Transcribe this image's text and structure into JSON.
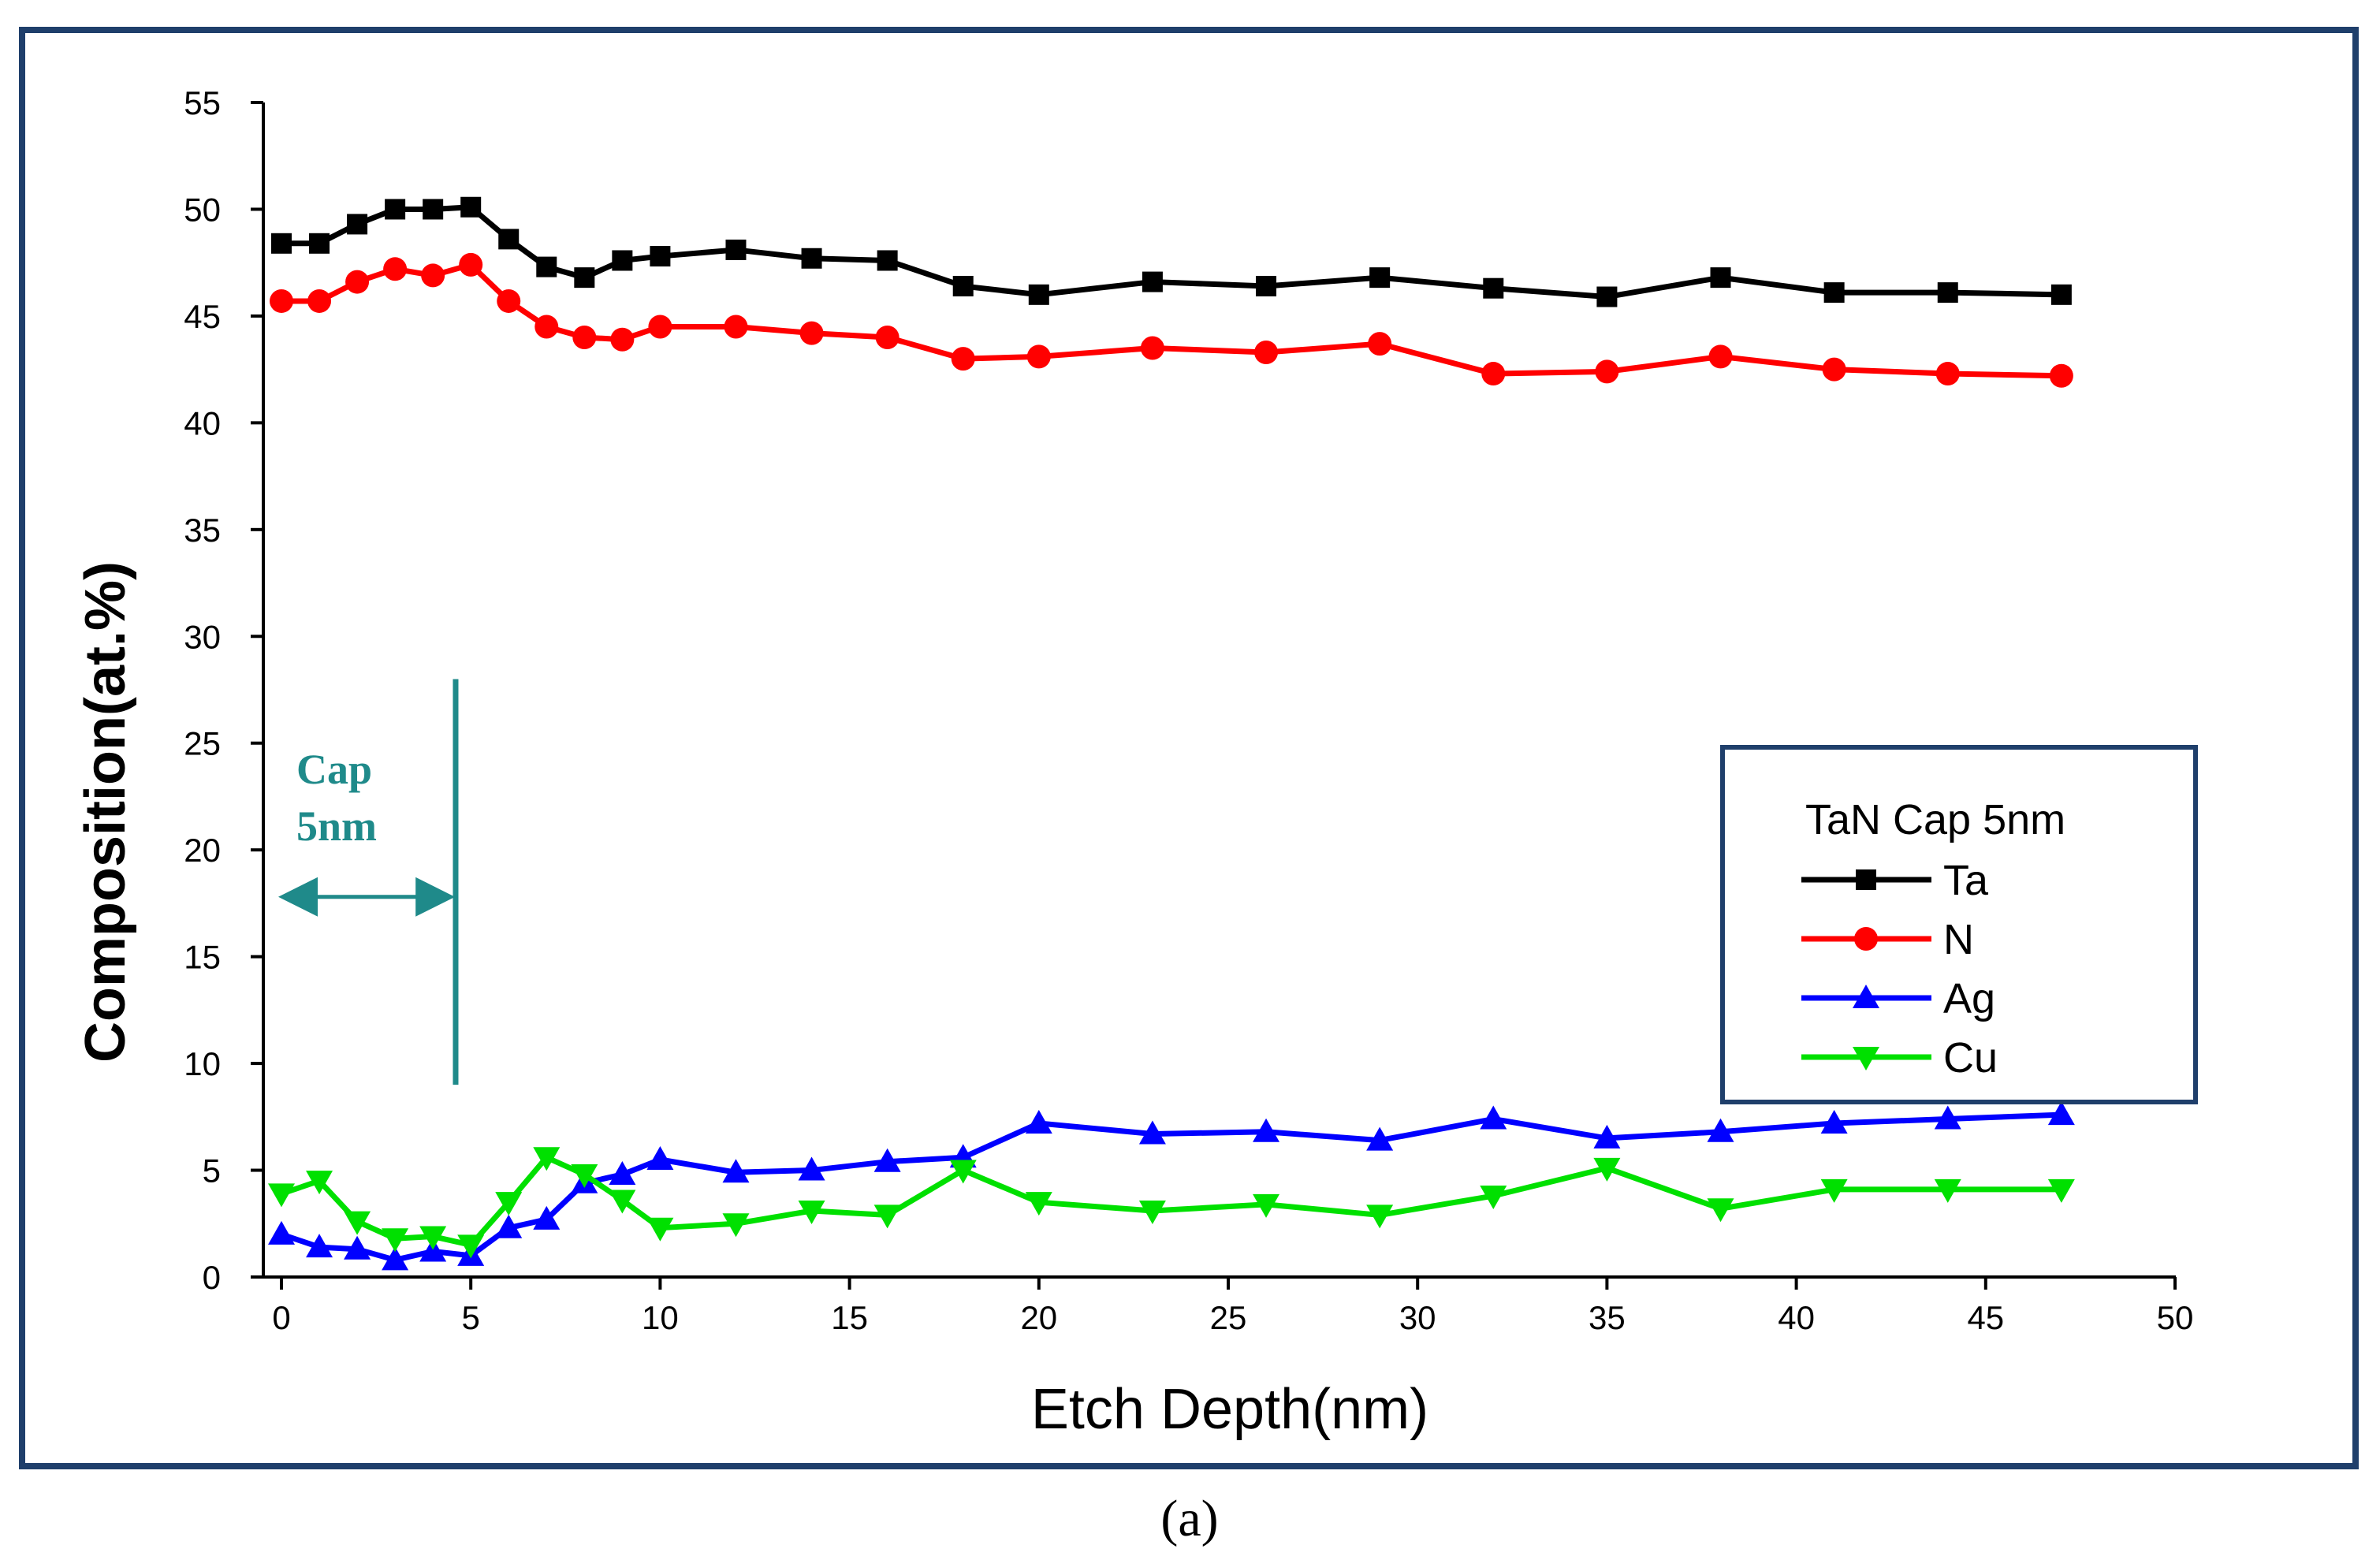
{
  "chart_data": {
    "type": "line",
    "title": "",
    "xlabel": "Etch Depth(nm)",
    "ylabel": "Composition(at.%)",
    "xlim": [
      0,
      50
    ],
    "ylim": [
      0,
      55
    ],
    "xticks": [
      0,
      5,
      10,
      15,
      20,
      25,
      30,
      35,
      40,
      45,
      50
    ],
    "yticks": [
      0,
      5,
      10,
      15,
      20,
      25,
      30,
      35,
      40,
      45,
      50,
      55
    ],
    "xtick_labels": [
      "0",
      "5",
      "10",
      "15",
      "20",
      "25",
      "30",
      "35",
      "40",
      "45",
      "50"
    ],
    "ytick_labels": [
      "0",
      "5",
      "10",
      "15",
      "20",
      "25",
      "30",
      "35",
      "40",
      "45",
      "50",
      "55"
    ],
    "grid": false,
    "legend": {
      "title": "TaN Cap 5nm",
      "position": "right-middle"
    },
    "series": [
      {
        "name": "Ta",
        "color": "#000000",
        "marker": "square",
        "x": [
          0,
          1,
          2,
          3,
          4,
          5,
          6,
          7,
          8,
          9,
          10,
          12,
          14,
          16,
          18,
          20,
          23,
          26,
          29,
          32,
          35,
          38,
          41,
          44,
          47
        ],
        "y": [
          48.4,
          48.4,
          49.3,
          50.0,
          50.0,
          50.1,
          48.6,
          47.3,
          46.8,
          47.6,
          47.8,
          48.1,
          47.7,
          47.6,
          46.4,
          46.0,
          46.6,
          46.4,
          46.8,
          46.3,
          45.9,
          46.8,
          46.1,
          46.1,
          46.0
        ]
      },
      {
        "name": "N",
        "color": "#ff0000",
        "marker": "circle",
        "x": [
          0,
          1,
          2,
          3,
          4,
          5,
          6,
          7,
          8,
          9,
          10,
          12,
          14,
          16,
          18,
          20,
          23,
          26,
          29,
          32,
          35,
          38,
          41,
          44,
          47
        ],
        "y": [
          45.7,
          45.7,
          46.6,
          47.2,
          46.9,
          47.4,
          45.7,
          44.5,
          44.0,
          43.9,
          44.5,
          44.5,
          44.2,
          44.0,
          43.0,
          43.1,
          43.5,
          43.3,
          43.7,
          42.3,
          42.4,
          43.1,
          42.5,
          42.3,
          42.2
        ]
      },
      {
        "name": "Ag",
        "color": "#0000ff",
        "marker": "triangle-up",
        "x": [
          0,
          1,
          2,
          3,
          4,
          5,
          6,
          7,
          8,
          9,
          10,
          12,
          14,
          16,
          18,
          20,
          23,
          26,
          29,
          32,
          35,
          38,
          41,
          44,
          47
        ],
        "y": [
          2.0,
          1.4,
          1.3,
          0.8,
          1.2,
          1.0,
          2.3,
          2.7,
          4.4,
          4.8,
          5.5,
          4.9,
          5.0,
          5.4,
          5.6,
          7.2,
          6.7,
          6.8,
          6.4,
          7.4,
          6.5,
          6.8,
          7.2,
          7.4,
          7.6
        ]
      },
      {
        "name": "Cu",
        "color": "#00e000",
        "marker": "triangle-down",
        "x": [
          0,
          1,
          2,
          3,
          4,
          5,
          6,
          7,
          8,
          9,
          10,
          12,
          14,
          16,
          18,
          20,
          23,
          26,
          29,
          32,
          35,
          38,
          41,
          44,
          47
        ],
        "y": [
          3.9,
          4.5,
          2.6,
          1.8,
          1.9,
          1.5,
          3.5,
          5.6,
          4.8,
          3.6,
          2.3,
          2.5,
          3.1,
          2.9,
          5.0,
          3.5,
          3.1,
          3.4,
          2.9,
          3.8,
          5.1,
          3.2,
          4.1,
          4.1,
          4.1
        ]
      }
    ],
    "annotations": {
      "cap_label_line1": "Cap",
      "cap_label_line2": "5nm",
      "cap_boundary_x": 4.6,
      "cap_boundary_y_range": [
        9.0,
        28.0
      ],
      "cap_arrow_x_range": [
        0,
        4.5
      ],
      "cap_arrow_y": 17.8,
      "color": "#1f8a8a"
    }
  },
  "caption": "(a)",
  "frame_color": "#1f3f6b"
}
